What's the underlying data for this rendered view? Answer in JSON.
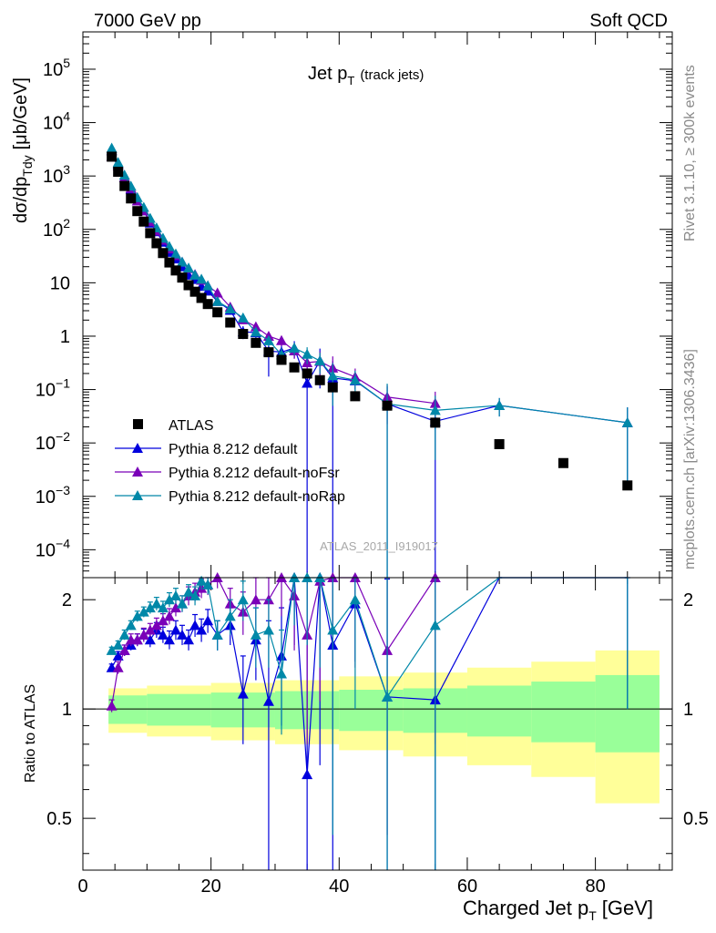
{
  "header": {
    "left": "7000 GeV pp",
    "right": "Soft QCD"
  },
  "side_text": {
    "top": "Rivet 3.1.10, ≥ 300k events",
    "bottom": "mcplots.cern.ch [arXiv:1306.3436]"
  },
  "watermark": "ATLAS_2011_I919017",
  "chart_data": {
    "type": "scatter",
    "title": "Jet p_T (track jets)",
    "title_main": "Jet p",
    "title_sub": "T",
    "title_suffix": "(track jets)",
    "xlabel": "Charged Jet p_T [GeV]",
    "xlabel_main": "Charged Jet p",
    "xlabel_sub": "T",
    "xlabel_suffix": "[GeV]",
    "ylabel_main": "dσ/dp",
    "ylabel_sub": "Tdy",
    "ylabel_suffix": "[μb/GeV]",
    "ratio_ylabel": "Ratio to ATLAS",
    "xlim": [
      0,
      92
    ],
    "ylim": [
      3e-05,
      500000
    ],
    "ratio_ylim": [
      0.36,
      2.3
    ],
    "yscale": "log",
    "x_ticks": [
      "0",
      "20",
      "40",
      "60",
      "80"
    ],
    "y_ticks": [
      {
        "m": "10",
        "e": "−4"
      },
      {
        "m": "10",
        "e": "−3"
      },
      {
        "m": "10",
        "e": "−2"
      },
      {
        "m": "10",
        "e": "−1"
      },
      {
        "m": "1",
        "e": ""
      },
      {
        "m": "10",
        "e": ""
      },
      {
        "m": "10",
        "e": "2"
      },
      {
        "m": "10",
        "e": "3"
      },
      {
        "m": "10",
        "e": "4"
      },
      {
        "m": "10",
        "e": "5"
      }
    ],
    "ratio_ticks": [
      "0.5",
      "1",
      "2"
    ],
    "legend": {
      "position": "bottom-left",
      "entries": [
        "ATLAS",
        "Pythia 8.212 default",
        "Pythia 8.212 default-noFsr",
        "Pythia 8.212 default-noRap"
      ]
    },
    "colors": {
      "data": "#000000",
      "default": "#0000dd",
      "noFsr": "#7a00b8",
      "noRap": "#0088a8",
      "band_inner": "#99ff99",
      "band_outer": "#ffff99"
    },
    "data": {
      "x": [
        4.5,
        5.5,
        6.5,
        7.5,
        8.5,
        9.5,
        10.5,
        11.5,
        12.5,
        13.5,
        14.5,
        15.5,
        16.5,
        17.5,
        18.5,
        19.5,
        21,
        23,
        25,
        27,
        29,
        31,
        33,
        35,
        37,
        39,
        42.5,
        47.5,
        55,
        65,
        75,
        85
      ],
      "y": [
        2300,
        1200,
        650,
        380,
        220,
        140,
        85,
        55,
        36,
        24,
        17,
        12.5,
        9,
        6.8,
        5.2,
        4,
        2.8,
        1.8,
        1.1,
        0.75,
        0.5,
        0.36,
        0.26,
        0.2,
        0.15,
        0.11,
        0.075,
        0.05,
        0.024,
        0.0095,
        0.0042,
        0.0016
      ],
      "uncertainty": {
        "x": [
          4,
          10,
          20,
          30,
          40,
          50,
          60,
          70,
          80,
          90
        ],
        "inner": [
          0.09,
          0.1,
          0.11,
          0.12,
          0.13,
          0.14,
          0.16,
          0.19,
          0.24,
          0.33
        ],
        "outer": [
          0.14,
          0.16,
          0.18,
          0.2,
          0.23,
          0.26,
          0.3,
          0.35,
          0.45,
          0.6
        ]
      }
    },
    "series": [
      {
        "key": "default",
        "name": "Pythia 8.212 default",
        "x": [
          4.5,
          5.5,
          6.5,
          7.5,
          8.5,
          9.5,
          10.5,
          11.5,
          12.5,
          13.5,
          14.5,
          15.5,
          16.5,
          17.5,
          18.5,
          19.5,
          21,
          23,
          25,
          27,
          29,
          31,
          33,
          35,
          37,
          39,
          42.5,
          47.5,
          55,
          65,
          85
        ],
        "ratio": [
          1.3,
          1.4,
          1.45,
          1.5,
          1.55,
          1.6,
          1.55,
          1.65,
          1.6,
          1.55,
          1.65,
          1.6,
          1.55,
          1.7,
          1.65,
          1.75,
          1.6,
          1.7,
          1.1,
          1.55,
          1.05,
          1.4,
          2.3,
          0.66,
          2.3,
          1.5,
          1.95,
          1.08,
          1.06,
          5.3,
          15
        ],
        "err": [
          0.03,
          0.04,
          0.05,
          0.05,
          0.06,
          0.06,
          0.07,
          0.08,
          0.08,
          0.09,
          0.1,
          0.1,
          0.1,
          0.12,
          0.12,
          0.13,
          0.15,
          0.2,
          0.3,
          0.35,
          0.7,
          0.5,
          0.8,
          1.6,
          1.6,
          1.6,
          0.6,
          1.2,
          1.3,
          2,
          14
        ]
      },
      {
        "key": "noFsr",
        "name": "Pythia 8.212 default-noFsr",
        "x": [
          4.5,
          5.5,
          6.5,
          7.5,
          8.5,
          9.5,
          10.5,
          11.5,
          12.5,
          13.5,
          14.5,
          15.5,
          16.5,
          17.5,
          18.5,
          19.5,
          21,
          23,
          25,
          27,
          29,
          31,
          33,
          35,
          37,
          39,
          42.5,
          47.5,
          55
        ],
        "ratio": [
          1.02,
          1.3,
          1.45,
          1.55,
          1.55,
          1.6,
          1.65,
          1.7,
          1.75,
          1.8,
          1.9,
          1.95,
          2.05,
          2.1,
          2.15,
          2.2,
          2.3,
          1.95,
          1.85,
          2.0,
          2.0,
          2.3,
          2.05,
          1.6,
          2.25,
          2.3,
          2.3,
          1.45,
          2.3
        ],
        "err": [
          0.04,
          0.05,
          0.05,
          0.06,
          0.06,
          0.07,
          0.07,
          0.08,
          0.08,
          0.09,
          0.1,
          0.1,
          0.12,
          0.12,
          0.13,
          0.14,
          0.15,
          0.2,
          0.25,
          0.3,
          0.35,
          0.5,
          0.6,
          0.8,
          1.2,
          1.5,
          1.0,
          1.0,
          1.5
        ]
      },
      {
        "key": "noRap",
        "name": "Pythia 8.212 default-noRap",
        "x": [
          4.5,
          5.5,
          6.5,
          7.5,
          8.5,
          9.5,
          10.5,
          11.5,
          12.5,
          13.5,
          14.5,
          15.5,
          16.5,
          17.5,
          18.5,
          19.5,
          21,
          23,
          25,
          27,
          29,
          31,
          33,
          35,
          37,
          39,
          42.5,
          47.5,
          55,
          65,
          85
        ],
        "ratio": [
          1.45,
          1.5,
          1.6,
          1.7,
          1.8,
          1.85,
          1.9,
          1.95,
          1.9,
          2.0,
          2.05,
          1.95,
          2.1,
          2.05,
          2.25,
          2.2,
          1.6,
          1.8,
          2.0,
          1.6,
          1.65,
          1.25,
          2.3,
          2.3,
          2.3,
          1.65,
          2.0,
          1.08,
          1.7,
          5.3,
          15
        ],
        "err": [
          0.03,
          0.04,
          0.05,
          0.05,
          0.06,
          0.06,
          0.07,
          0.08,
          0.08,
          0.09,
          0.1,
          0.1,
          0.1,
          0.12,
          0.12,
          0.13,
          0.15,
          0.2,
          0.25,
          0.3,
          0.35,
          0.4,
          0.6,
          0.8,
          1.0,
          1.2,
          1.0,
          1.5,
          1.5,
          2,
          14
        ]
      }
    ]
  }
}
